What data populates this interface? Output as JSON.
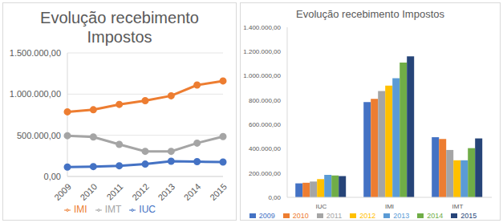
{
  "chart_data": [
    {
      "type": "line",
      "title": "Evolução recebimento Impostos",
      "categories": [
        "2009",
        "2010",
        "2011",
        "2012",
        "2013",
        "2014",
        "2015"
      ],
      "series": [
        {
          "name": "IUC",
          "color": "#4472c4",
          "marker": "circle",
          "values": [
            115000,
            120000,
            130000,
            150000,
            185000,
            180000,
            175000
          ]
        },
        {
          "name": "IMI",
          "color": "#ed7d31",
          "marker": "circle",
          "values": [
            785000,
            810000,
            875000,
            920000,
            980000,
            1110000,
            1160000
          ]
        },
        {
          "name": "IMT",
          "color": "#a5a5a5",
          "marker": "circle",
          "values": [
            495000,
            480000,
            390000,
            305000,
            305000,
            405000,
            485000
          ]
        }
      ],
      "ylim": [
        0,
        1500000
      ],
      "yticks": [
        {
          "value": 0,
          "label": "0,00"
        },
        {
          "value": 500000,
          "label": "500.000,00"
        },
        {
          "value": 1000000,
          "label": "1.000.000,00"
        },
        {
          "value": 1500000,
          "label": "1.500.000,00"
        }
      ],
      "grid": true,
      "legend": "bottom"
    },
    {
      "type": "bar",
      "title": "Evolução recebimento Impostos",
      "categories": [
        "IUC",
        "IMI",
        "IMT"
      ],
      "series": [
        {
          "name": "2009",
          "color": "#4472c4",
          "values": [
            115000,
            785000,
            495000
          ]
        },
        {
          "name": "2010",
          "color": "#ed7d31",
          "values": [
            120000,
            810000,
            480000
          ]
        },
        {
          "name": "2011",
          "color": "#a5a5a5",
          "values": [
            130000,
            875000,
            390000
          ]
        },
        {
          "name": "2012",
          "color": "#ffc000",
          "values": [
            150000,
            920000,
            305000
          ]
        },
        {
          "name": "2013",
          "color": "#5b9bd5",
          "values": [
            185000,
            980000,
            305000
          ]
        },
        {
          "name": "2014",
          "color": "#70ad47",
          "values": [
            180000,
            1110000,
            405000
          ]
        },
        {
          "name": "2015",
          "color": "#264478",
          "values": [
            175000,
            1160000,
            485000
          ]
        }
      ],
      "ylim": [
        0,
        1400000
      ],
      "yticks": [
        {
          "value": 0,
          "label": "0,00"
        },
        {
          "value": 200000,
          "label": "200.000,00"
        },
        {
          "value": 400000,
          "label": "400.000,00"
        },
        {
          "value": 600000,
          "label": "600.000,00"
        },
        {
          "value": 800000,
          "label": "800.000,00"
        },
        {
          "value": 1000000,
          "label": "1.000.000,00"
        },
        {
          "value": 1200000,
          "label": "1.200.000,00"
        },
        {
          "value": 1400000,
          "label": "1.400.000,00"
        }
      ],
      "grid": false,
      "legend": "bottom"
    }
  ]
}
